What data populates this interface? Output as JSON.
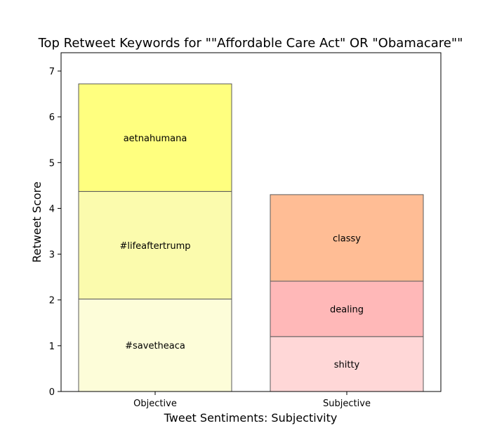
{
  "chart_data": {
    "type": "bar",
    "stacked": true,
    "title": "Top Retweet Keywords for \"\"Affordable Care Act\" OR \"Obamacare\"\"",
    "xlabel": "Tweet Sentiments: Subjectivity",
    "ylabel": "Retweet Score",
    "ylim": [
      0,
      7.4
    ],
    "yticks": [
      "0",
      "1",
      "2",
      "3",
      "4",
      "5",
      "6",
      "7"
    ],
    "grid": false,
    "categories": [
      "Objective",
      "Subjective"
    ],
    "bars": [
      {
        "category": "Objective",
        "segments": [
          {
            "label": "#savetheaca",
            "value": 2.02,
            "color": "#fdfdd9"
          },
          {
            "label": "#lifeaftertrump",
            "value": 2.35,
            "color": "#fbfbad"
          },
          {
            "label": "aetnahumana",
            "value": 2.35,
            "color": "#ffff7f"
          }
        ]
      },
      {
        "category": "Subjective",
        "segments": [
          {
            "label": "shitty",
            "value": 1.2,
            "color": "#ffd7d7"
          },
          {
            "label": "dealing",
            "value": 1.21,
            "color": "#ffb8b8"
          },
          {
            "label": "classy",
            "value": 1.89,
            "color": "#ffbd95"
          }
        ]
      }
    ]
  }
}
